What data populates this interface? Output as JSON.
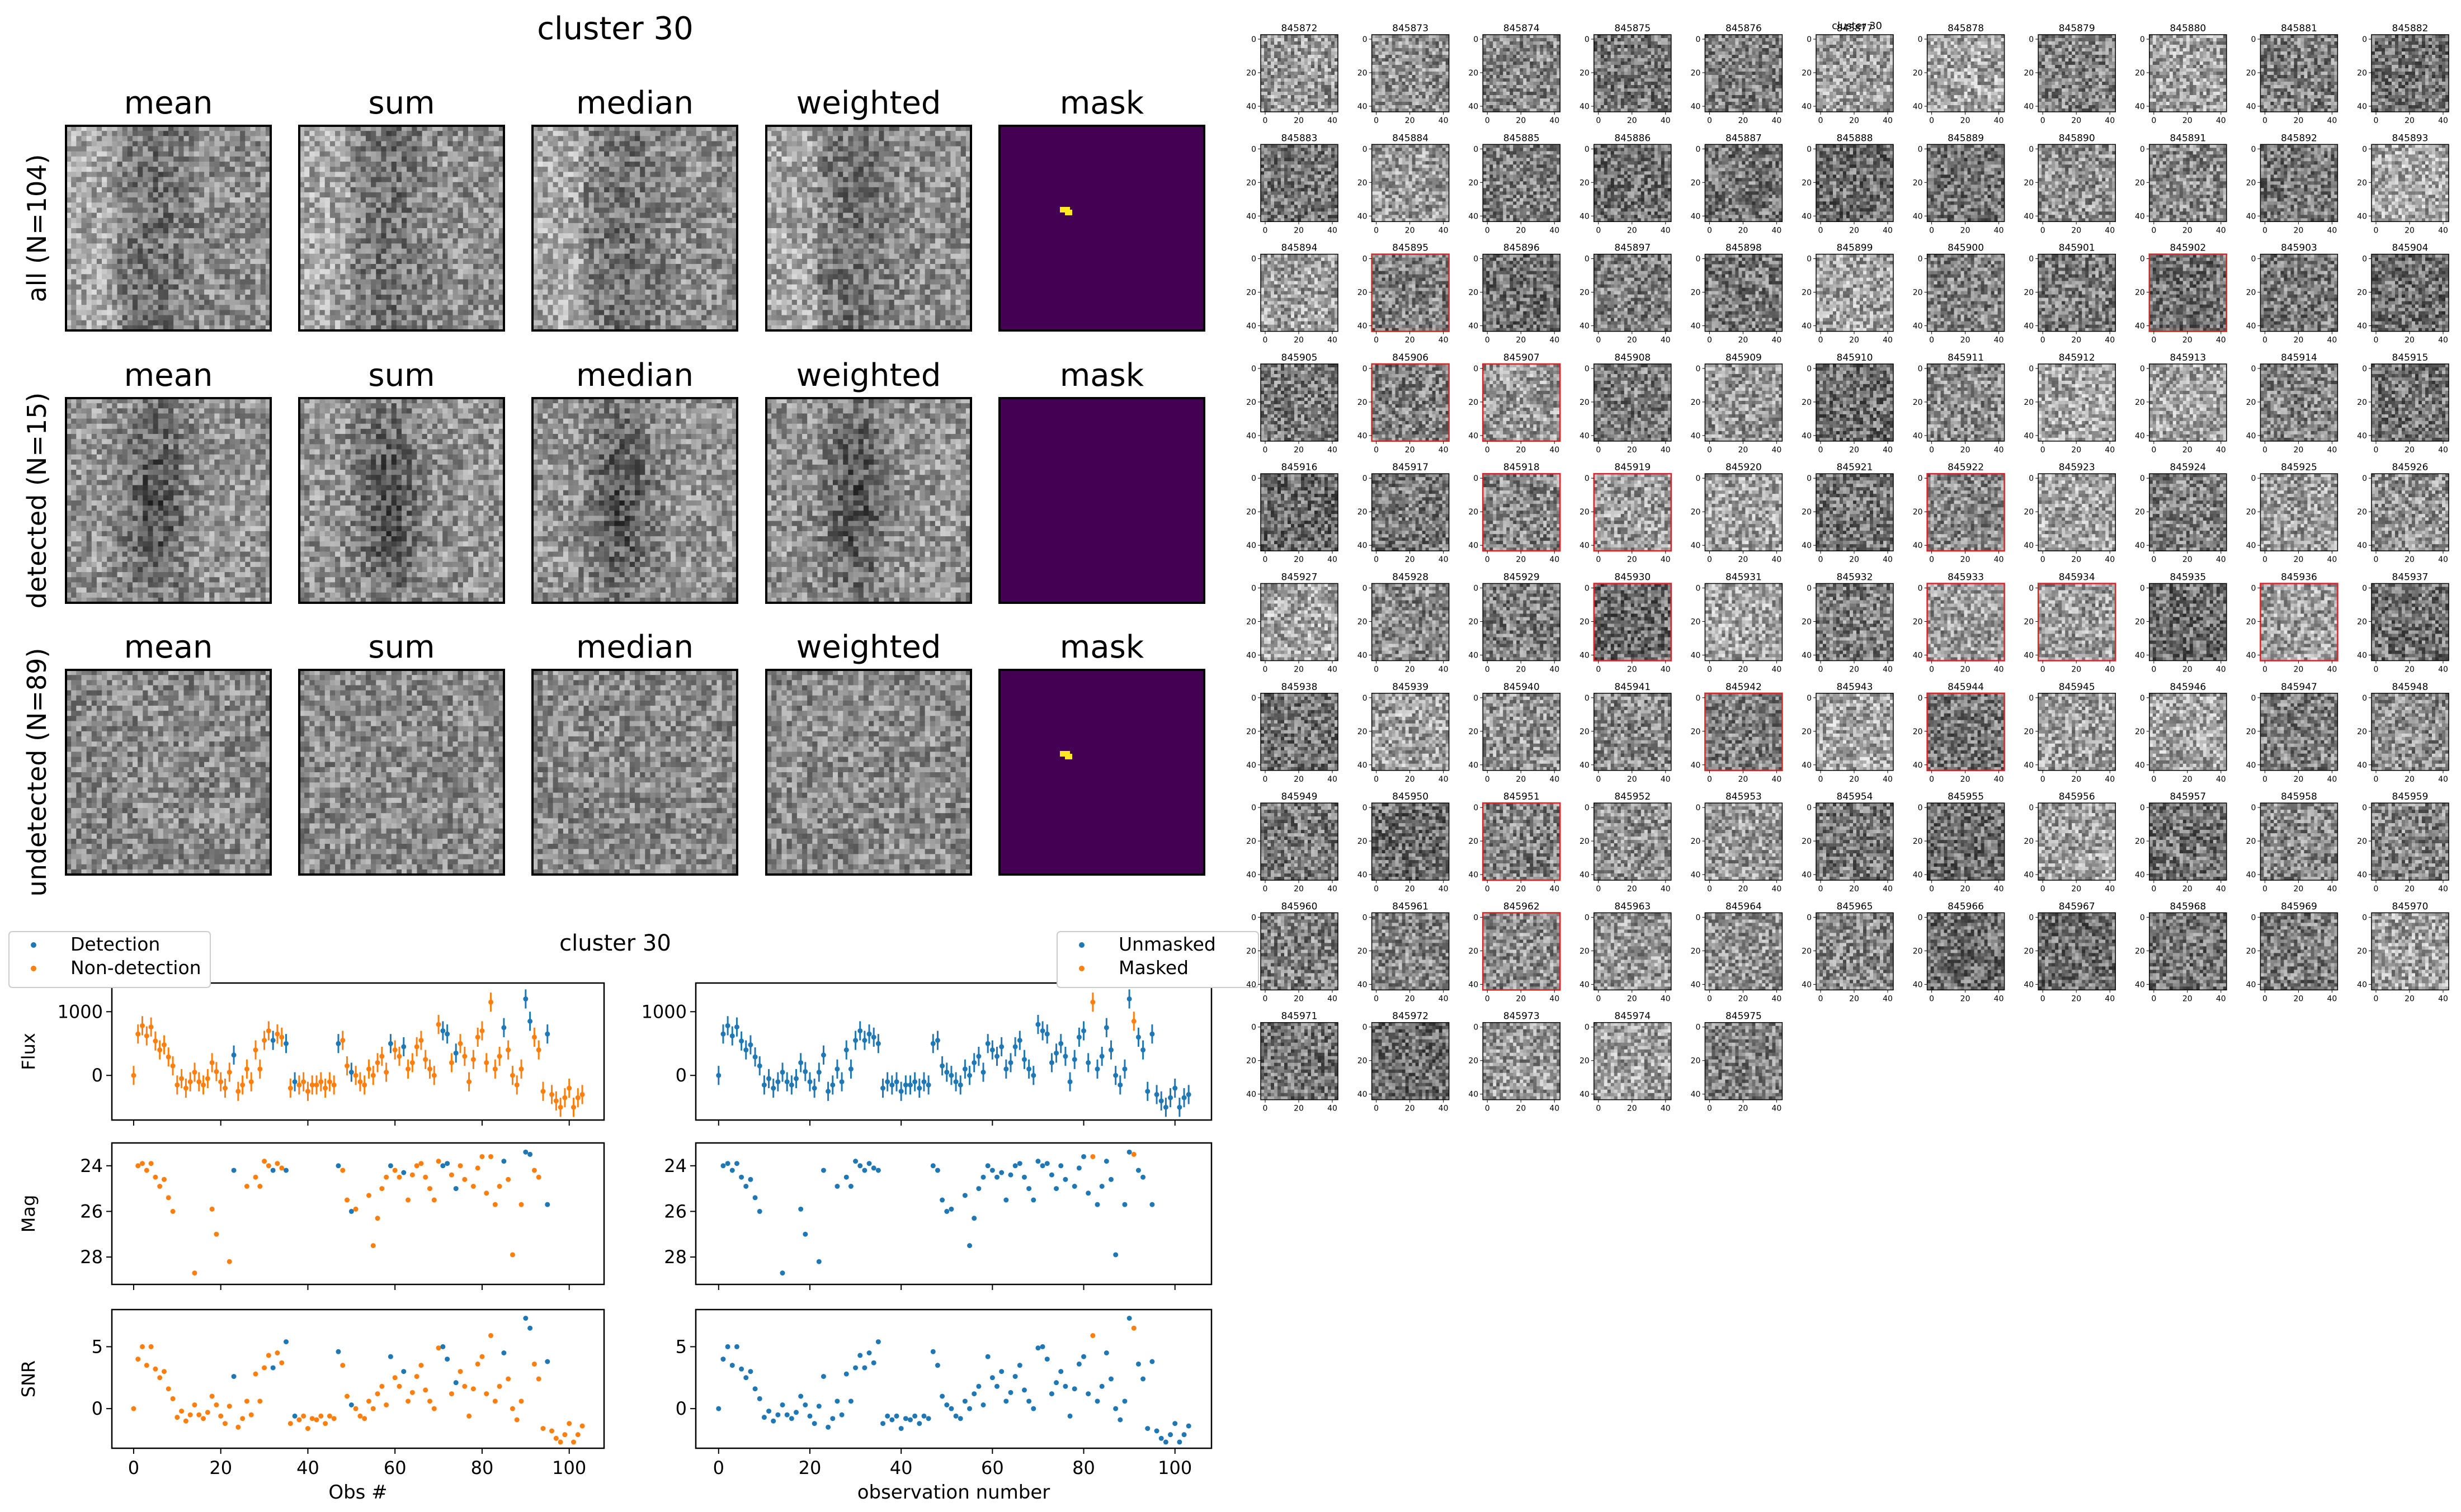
{
  "left_panel": {
    "title": "cluster 30",
    "columns": [
      "mean",
      "sum",
      "median",
      "weighted",
      "mask"
    ],
    "rows": [
      "all (N=104)",
      "detected (N=15)",
      "undetected (N=89)"
    ],
    "mask_colors": {
      "background": "#440154",
      "marker": "#fde725"
    }
  },
  "lightcurve": {
    "title": "cluster 30",
    "legend_left": [
      "Detection",
      "Non-detection"
    ],
    "legend_right": [
      "Unmasked",
      "Masked"
    ],
    "ylabels": [
      "Flux",
      "Mag",
      "SNR"
    ],
    "xlabel_left": "Obs #",
    "xlabel_right": "observation number",
    "xticks": [
      "0",
      "20",
      "40",
      "60",
      "80",
      "100"
    ],
    "flux_ticks": [
      "1000",
      "0"
    ],
    "mag_ticks": [
      "24",
      "26",
      "28"
    ],
    "snr_ticks": [
      "5",
      "0"
    ],
    "colors": {
      "blue": "#1f77b4",
      "orange": "#ff7f0e"
    }
  },
  "chart_data": {
    "type": "scatter",
    "title": "cluster 30",
    "xlabel": "Obs #",
    "x_range": [
      -5,
      108
    ],
    "flux": {
      "ylabel": "Flux",
      "ylim": [
        -700,
        1450
      ]
    },
    "mag": {
      "ylabel": "Mag",
      "ylim": [
        29.2,
        23.0
      ]
    },
    "snr": {
      "ylabel": "SNR",
      "ylim": [
        -3.2,
        8.0
      ]
    },
    "detected_obs": [
      23,
      32,
      35,
      37,
      47,
      50,
      59,
      62,
      71,
      72,
      74,
      85,
      90,
      91,
      95
    ],
    "masked_obs": [
      82,
      91
    ],
    "flux_values": [
      0,
      650,
      780,
      620,
      760,
      540,
      400,
      480,
      290,
      150,
      -150,
      -50,
      -200,
      -100,
      50,
      -100,
      -150,
      -50,
      200,
      60,
      -100,
      -200,
      50,
      320,
      -250,
      -150,
      100,
      -100,
      400,
      100,
      550,
      700,
      550,
      650,
      600,
      500,
      -200,
      -100,
      -150,
      -100,
      -250,
      -150,
      -150,
      -100,
      -200,
      -100,
      -150,
      500,
      550,
      150,
      50,
      0,
      -100,
      -150,
      100,
      0,
      200,
      300,
      50,
      500,
      400,
      300,
      450,
      100,
      200,
      450,
      550,
      250,
      100,
      0,
      800,
      700,
      650,
      200,
      350,
      500,
      300,
      -100,
      250,
      600,
      700,
      200,
      1150,
      100,
      300,
      750,
      400,
      0,
      -150,
      100,
      1200,
      850,
      600,
      400,
      -250,
      650,
      -300,
      -400,
      -500,
      -350,
      -200,
      -500,
      -350,
      -300
    ],
    "mag_values": [
      null,
      24.0,
      23.9,
      24.2,
      23.9,
      24.5,
      24.9,
      24.6,
      25.4,
      26.0,
      null,
      null,
      null,
      null,
      28.7,
      null,
      null,
      null,
      25.9,
      27.0,
      null,
      null,
      28.2,
      24.2,
      null,
      null,
      24.9,
      null,
      24.5,
      24.9,
      23.8,
      24.0,
      24.2,
      23.9,
      24.1,
      24.2,
      null,
      null,
      null,
      null,
      null,
      null,
      null,
      null,
      null,
      null,
      null,
      24.0,
      24.2,
      25.5,
      26.0,
      25.9,
      null,
      null,
      25.3,
      27.5,
      26.3,
      25.0,
      24.5,
      24.0,
      24.2,
      24.5,
      24.3,
      25.5,
      24.4,
      24.0,
      23.9,
      24.5,
      25.0,
      25.5,
      23.8,
      24.0,
      23.9,
      24.4,
      25.0,
      24.0,
      24.6,
      null,
      24.9,
      24.1,
      23.6,
      25.2,
      23.6,
      25.7,
      24.9,
      23.8,
      24.6,
      27.9,
      null,
      25.7,
      23.4,
      23.5,
      24.2,
      24.5,
      null,
      25.7,
      null,
      null,
      null,
      null,
      null,
      null,
      null,
      null
    ],
    "snr_values": [
      0.0,
      4.0,
      5.0,
      3.5,
      5.0,
      3.2,
      2.5,
      3.0,
      1.6,
      0.8,
      -0.7,
      -0.2,
      -1.0,
      -0.5,
      0.3,
      -0.5,
      -0.8,
      -0.3,
      1.0,
      0.3,
      -0.6,
      -1.2,
      0.2,
      2.6,
      -1.5,
      -0.8,
      0.6,
      -0.5,
      2.8,
      0.6,
      3.3,
      4.3,
      3.3,
      4.5,
      3.7,
      5.4,
      -1.2,
      -0.6,
      -0.9,
      -0.6,
      -1.6,
      -0.8,
      -0.9,
      -0.6,
      -1.2,
      -0.6,
      -0.8,
      4.6,
      3.5,
      1.0,
      0.3,
      0.0,
      -0.6,
      -0.8,
      0.6,
      0.0,
      1.2,
      1.8,
      0.3,
      4.2,
      2.5,
      1.8,
      3.0,
      0.6,
      1.3,
      2.6,
      3.5,
      1.5,
      0.6,
      0.0,
      4.9,
      5.0,
      4.0,
      1.2,
      2.1,
      3.0,
      1.8,
      -0.6,
      1.6,
      3.6,
      4.2,
      1.2,
      5.9,
      0.6,
      1.8,
      4.5,
      2.4,
      0.0,
      -0.9,
      0.6,
      7.3,
      6.5,
      3.6,
      2.4,
      -1.6,
      3.8,
      -1.8,
      -2.4,
      -2.7,
      -2.1,
      -1.2,
      -2.7,
      -2.1,
      -1.4
    ],
    "flux_errors": 150
  },
  "thumbnails": {
    "title": "cluster 30",
    "ids": [
      "845872",
      "845873",
      "845874",
      "845875",
      "845876",
      "845877",
      "845878",
      "845879",
      "845880",
      "845881",
      "845882",
      "845883",
      "845884",
      "845885",
      "845886",
      "845887",
      "845888",
      "845889",
      "845890",
      "845891",
      "845892",
      "845893",
      "845894",
      "845895",
      "845896",
      "845897",
      "845898",
      "845899",
      "845900",
      "845901",
      "845902",
      "845903",
      "845904",
      "845905",
      "845906",
      "845907",
      "845908",
      "845909",
      "845910",
      "845911",
      "845912",
      "845913",
      "845914",
      "845915",
      "845916",
      "845917",
      "845918",
      "845919",
      "845920",
      "845921",
      "845922",
      "845923",
      "845924",
      "845925",
      "845926",
      "845927",
      "845928",
      "845929",
      "845930",
      "845931",
      "845932",
      "845933",
      "845934",
      "845935",
      "845936",
      "845937",
      "845938",
      "845939",
      "845940",
      "845941",
      "845942",
      "845943",
      "845944",
      "845945",
      "845946",
      "845947",
      "845948",
      "845949",
      "845950",
      "845951",
      "845952",
      "845953",
      "845954",
      "845955",
      "845956",
      "845957",
      "845958",
      "845959",
      "845960",
      "845961",
      "845962",
      "845963",
      "845964",
      "845965",
      "845966",
      "845967",
      "845968",
      "845969",
      "845970",
      "845971",
      "845972",
      "845973",
      "845974",
      "845975"
    ],
    "highlighted_ids": [
      "845895",
      "845902",
      "845906",
      "845907",
      "845918",
      "845919",
      "845922",
      "845930",
      "845933",
      "845934",
      "845936",
      "845942",
      "845944",
      "845951",
      "845962"
    ],
    "axis_ticks_y": [
      "0",
      "20",
      "40"
    ],
    "axis_ticks_x": [
      "0",
      "20",
      "40"
    ],
    "highlight_color": "#d62728"
  }
}
